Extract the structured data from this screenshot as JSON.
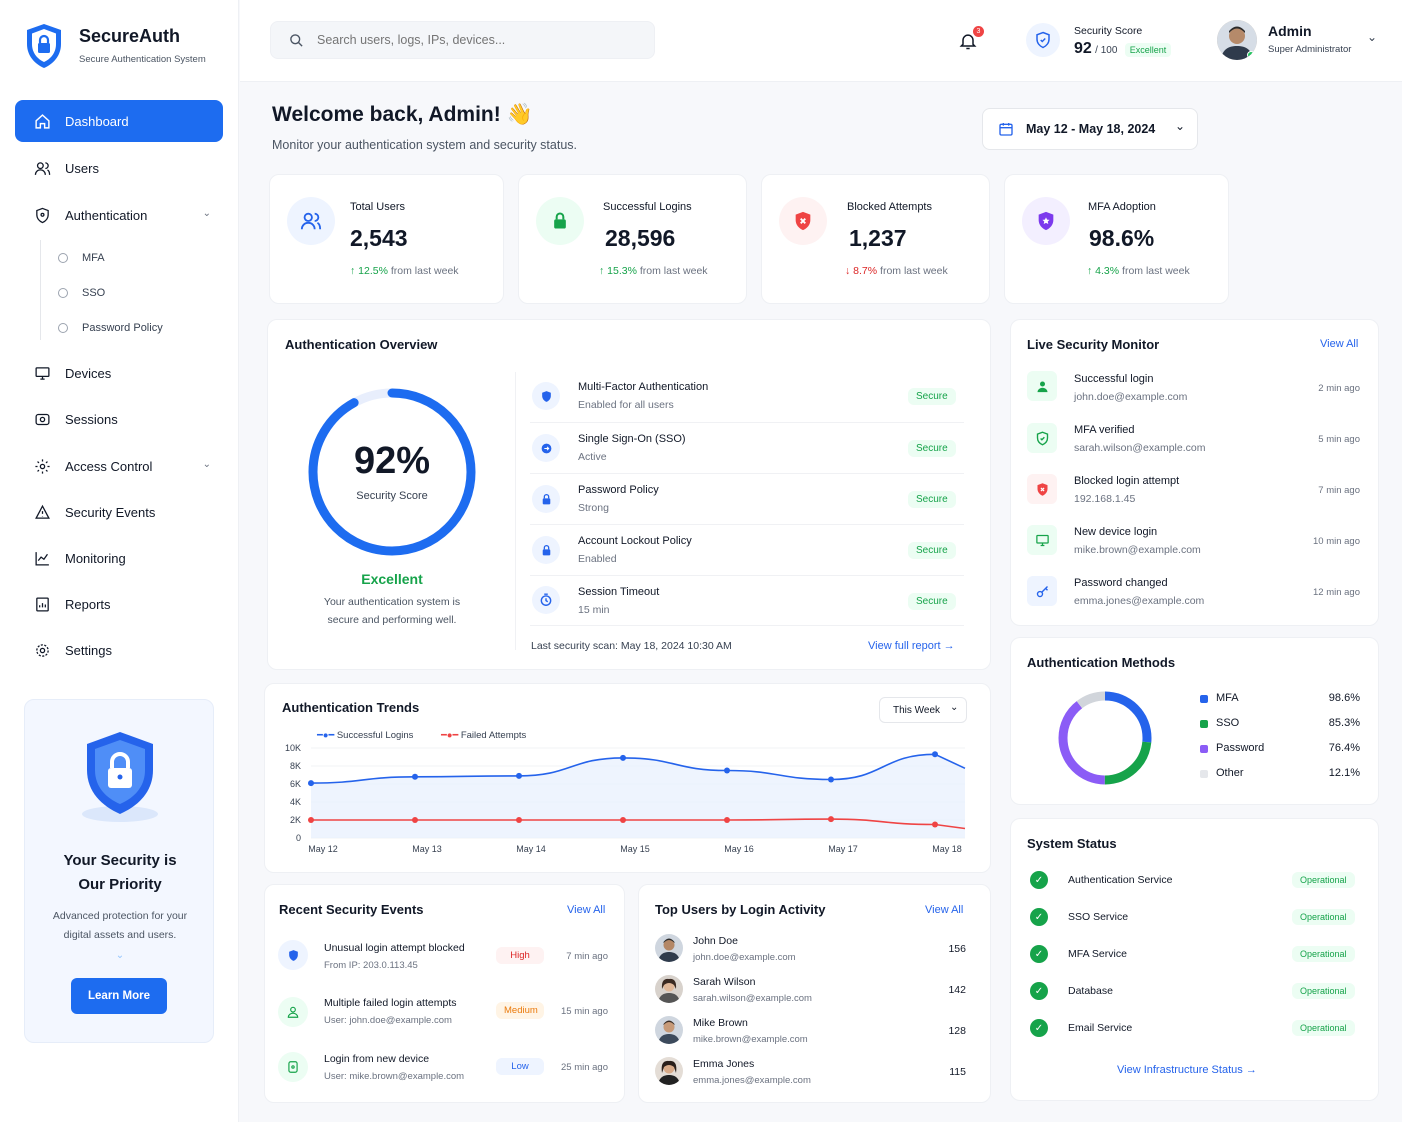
{
  "brand": {
    "name": "SecureAuth",
    "tagline": "Secure Authentication System"
  },
  "sidebar": {
    "items": [
      {
        "label": "Dashboard",
        "icon": "home-icon",
        "active": true
      },
      {
        "label": "Users",
        "icon": "users-icon"
      },
      {
        "label": "Authentication",
        "icon": "shield-icon",
        "expandable": true
      },
      {
        "label": "Devices",
        "icon": "monitor-icon"
      },
      {
        "label": "Sessions",
        "icon": "session-icon"
      },
      {
        "label": "Access Control",
        "icon": "gear-shield-icon",
        "expandable": true
      },
      {
        "label": "Security Events",
        "icon": "alert-icon"
      },
      {
        "label": "Monitoring",
        "icon": "monitoring-icon"
      },
      {
        "label": "Reports",
        "icon": "reports-icon"
      },
      {
        "label": "Settings",
        "icon": "gear-icon"
      }
    ],
    "subitems": [
      "MFA",
      "SSO",
      "Password Policy"
    ],
    "promo": {
      "title1": "Your Security is",
      "title2": "Our Priority",
      "text1": "Advanced protection for your",
      "text2": "digital assets and users.",
      "button": "Learn More"
    }
  },
  "topbar": {
    "search_placeholder": "Search users, logs, IPs, devices...",
    "notifications": "3",
    "score_label": "Security Score",
    "score_value": "92",
    "score_max": "/ 100",
    "score_badge": "Excellent",
    "user_name": "Admin",
    "user_role": "Super Administrator"
  },
  "welcome": {
    "title": "Welcome back, Admin!",
    "emoji": "👋",
    "subtitle": "Monitor your authentication system and security status.",
    "date_range": "May 12 - May 18, 2024"
  },
  "stats": [
    {
      "title": "Total Users",
      "value": "2,543",
      "change": "12.5%",
      "dir": "up",
      "suffix": "from last week"
    },
    {
      "title": "Successful Logins",
      "value": "28,596",
      "change": "15.3%",
      "dir": "up",
      "suffix": "from last week"
    },
    {
      "title": "Blocked Attempts",
      "value": "1,237",
      "change": "8.7%",
      "dir": "down",
      "suffix": "from last week"
    },
    {
      "title": "MFA Adoption",
      "value": "98.6%",
      "change": "4.3%",
      "dir": "up",
      "suffix": "from last week"
    }
  ],
  "overview": {
    "title": "Authentication Overview",
    "score": "92%",
    "score_fraction": 0.92,
    "score_label": "Security Score",
    "rating": "Excellent",
    "desc1": "Your authentication system is",
    "desc2": "secure and performing well.",
    "items": [
      {
        "name": "Multi-Factor Authentication",
        "sub": "Enabled for all users",
        "status": "Secure"
      },
      {
        "name": "Single Sign-On (SSO)",
        "sub": "Active",
        "status": "Secure"
      },
      {
        "name": "Password Policy",
        "sub": "Strong",
        "status": "Secure"
      },
      {
        "name": "Account Lockout Policy",
        "sub": "Enabled",
        "status": "Secure"
      },
      {
        "name": "Session Timeout",
        "sub": "15 min",
        "status": "Secure"
      }
    ],
    "last_scan": "Last security scan: May 18, 2024 10:30 AM",
    "report_link": "View full report"
  },
  "live_monitor": {
    "title": "Live Security Monitor",
    "view_all": "View All",
    "items": [
      {
        "name": "Successful login",
        "sub": "john.doe@example.com",
        "time": "2 min ago"
      },
      {
        "name": "MFA verified",
        "sub": "sarah.wilson@example.com",
        "time": "5 min ago"
      },
      {
        "name": "Blocked login attempt",
        "sub": "192.168.1.45",
        "time": "7 min ago"
      },
      {
        "name": "New device login",
        "sub": "mike.brown@example.com",
        "time": "10 min ago"
      },
      {
        "name": "Password changed",
        "sub": "emma.jones@example.com",
        "time": "12 min ago"
      }
    ]
  },
  "methods": {
    "title": "Authentication Methods",
    "items": [
      {
        "name": "MFA",
        "value": "98.6%",
        "color": "#2563eb"
      },
      {
        "name": "SSO",
        "value": "85.3%",
        "color": "#16a34a"
      },
      {
        "name": "Password",
        "value": "76.4%",
        "color": "#8b5cf6"
      },
      {
        "name": "Other",
        "value": "12.1%",
        "color": "#d1d5db"
      }
    ]
  },
  "trends": {
    "title": "Authentication Trends",
    "period": "This Week",
    "legend_success": "Successful Logins",
    "legend_failed": "Failed Attempts"
  },
  "chart_data": {
    "type": "line",
    "title": "Authentication Trends",
    "categories": [
      "May 12",
      "May 13",
      "May 14",
      "May 15",
      "May 16",
      "May 17",
      "May 18"
    ],
    "y_ticks": [
      "0",
      "2K",
      "4K",
      "6K",
      "8K",
      "10K"
    ],
    "ylim": [
      0,
      10000
    ],
    "series": [
      {
        "name": "Successful Logins",
        "color": "#2563eb",
        "values": [
          6100,
          6800,
          6900,
          8900,
          7500,
          6500,
          9300
        ]
      },
      {
        "name": "Failed Attempts",
        "color": "#ef4444",
        "values": [
          2000,
          2000,
          2000,
          2000,
          2000,
          2100,
          1500
        ]
      }
    ],
    "legend": "top-left"
  },
  "events": {
    "title": "Recent Security Events",
    "view_all": "View All",
    "items": [
      {
        "name": "Unusual login attempt blocked",
        "sub": "From IP: 203.0.113.45",
        "level": "High",
        "time": "7 min ago"
      },
      {
        "name": "Multiple failed login attempts",
        "sub": "User: john.doe@example.com",
        "level": "Medium",
        "time": "15 min ago"
      },
      {
        "name": "Login from new device",
        "sub": "User: mike.brown@example.com",
        "level": "Low",
        "time": "25 min ago"
      }
    ]
  },
  "top_users": {
    "title": "Top Users by Login Activity",
    "view_all": "View All",
    "items": [
      {
        "name": "John Doe",
        "email": "john.doe@example.com",
        "count": "156"
      },
      {
        "name": "Sarah Wilson",
        "email": "sarah.wilson@example.com",
        "count": "142"
      },
      {
        "name": "Mike Brown",
        "email": "mike.brown@example.com",
        "count": "128"
      },
      {
        "name": "Emma Jones",
        "email": "emma.jones@example.com",
        "count": "115"
      }
    ]
  },
  "system_status": {
    "title": "System Status",
    "items": [
      {
        "name": "Authentication Service",
        "status": "Operational"
      },
      {
        "name": "SSO Service",
        "status": "Operational"
      },
      {
        "name": "MFA Service",
        "status": "Operational"
      },
      {
        "name": "Database",
        "status": "Operational"
      },
      {
        "name": "Email Service",
        "status": "Operational"
      }
    ],
    "link": "View Infrastructure Status"
  }
}
